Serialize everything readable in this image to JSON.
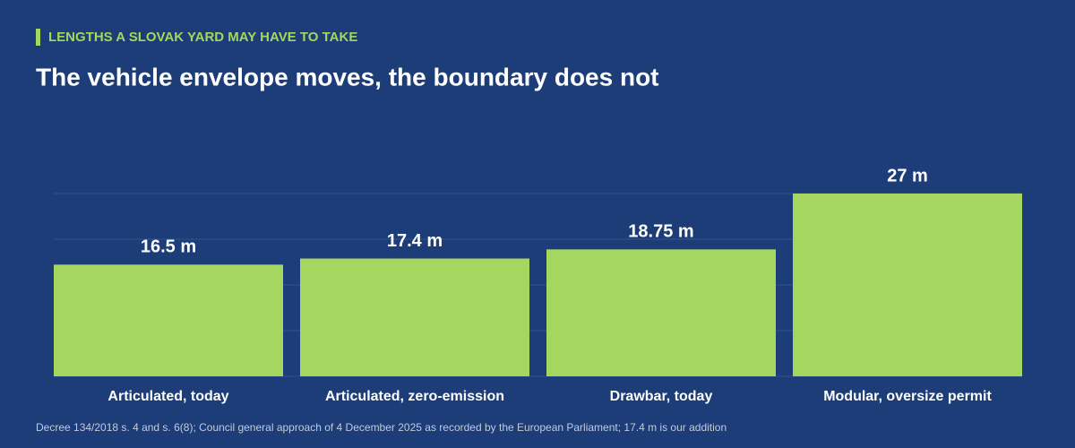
{
  "chart_data": {
    "type": "bar",
    "kicker": "LENGTHS A SLOVAK YARD MAY HAVE TO TAKE",
    "title": "The vehicle envelope moves, the boundary does not",
    "categories": [
      "Articulated, today",
      "Articulated, zero-emission",
      "Drawbar, today",
      "Modular, oversize permit"
    ],
    "values": [
      16.5,
      17.4,
      18.75,
      27
    ],
    "value_labels": [
      "16.5 m",
      "17.4 m",
      "18.75 m",
      "27 m"
    ],
    "color": "#a5d65f",
    "ylim": [
      0,
      27
    ],
    "yticks": [
      0,
      6.75,
      13.5,
      20.25,
      27
    ],
    "grid": true,
    "footnote": "Decree 134/2018 s. 4 and s. 6(8); Council general approach of 4 December 2025 as recorded by the European Parliament; 17.4 m is our addition"
  }
}
